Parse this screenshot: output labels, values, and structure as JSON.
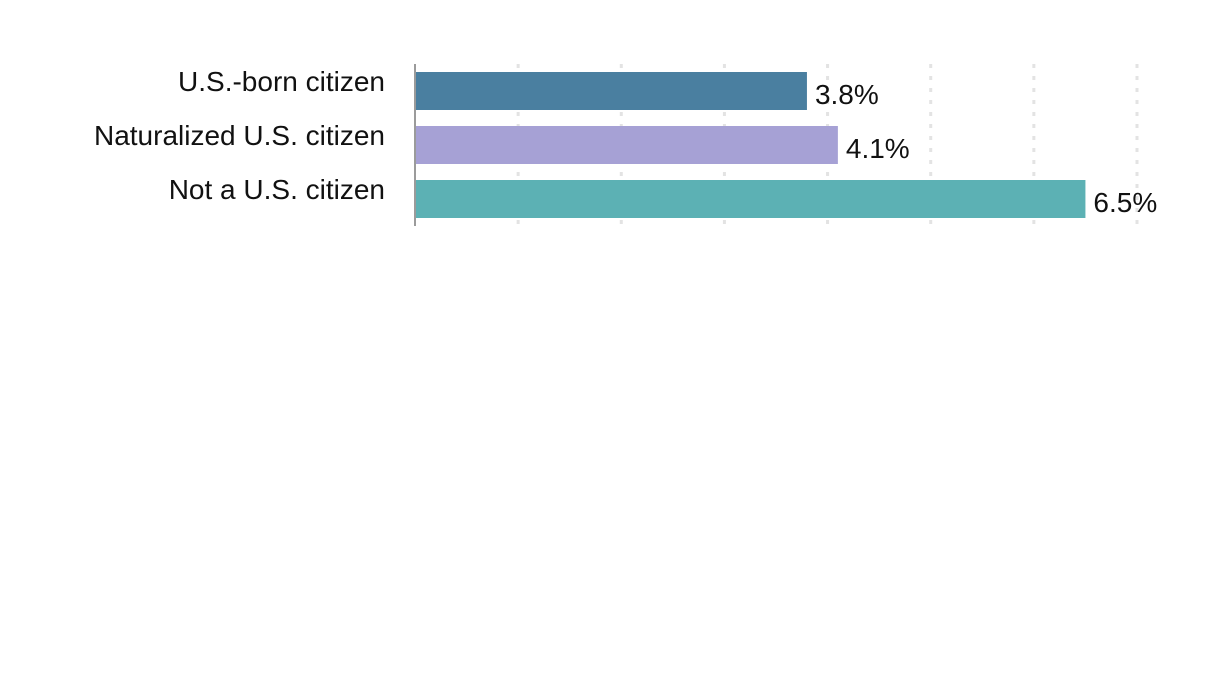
{
  "chart_data": {
    "type": "bar",
    "orientation": "horizontal",
    "categories": [
      "U.S.-born citizen",
      "Naturalized U.S. citizen",
      "Not a U.S. citizen"
    ],
    "values": [
      3.8,
      4.1,
      6.5
    ],
    "value_labels": [
      "3.8%",
      "4.1%",
      "6.5%"
    ],
    "colors": [
      "#4a7fa0",
      "#a6a1d5",
      "#5cb1b4"
    ],
    "xlim": [
      0,
      7
    ],
    "grid": true,
    "grid_style": "dotted vertical"
  }
}
